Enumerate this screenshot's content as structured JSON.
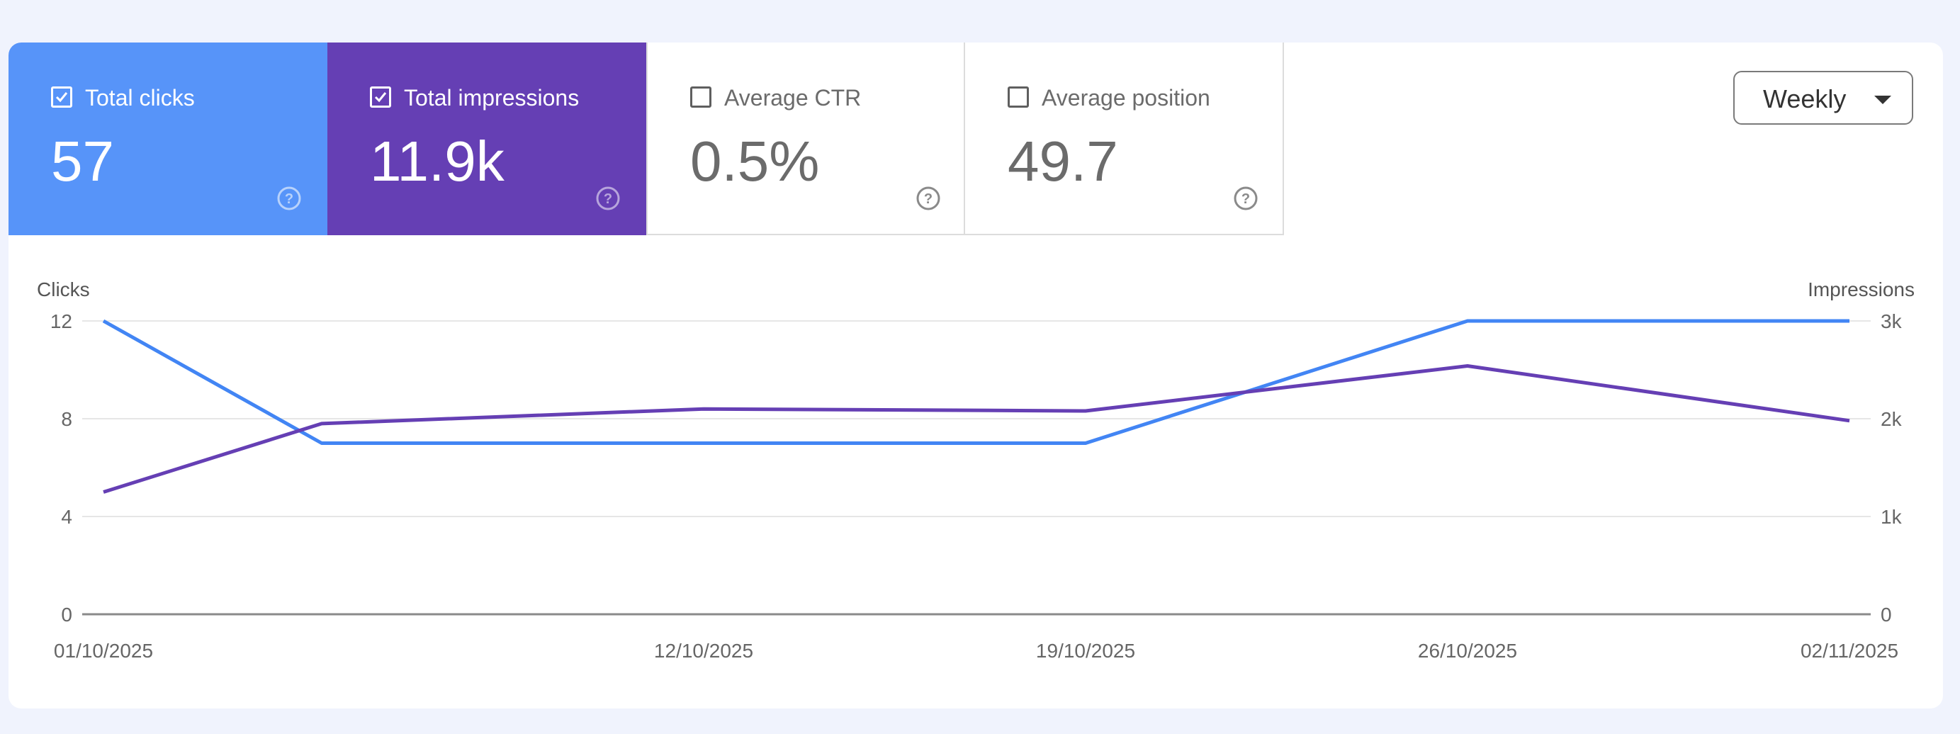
{
  "metrics": [
    {
      "label": "Total clicks",
      "value": "57",
      "checked": true,
      "color": "#5794f9"
    },
    {
      "label": "Total impressions",
      "value": "11.9k",
      "checked": true,
      "color": "#653fb4"
    },
    {
      "label": "Average CTR",
      "value": "0.5%",
      "checked": false
    },
    {
      "label": "Average position",
      "value": "49.7",
      "checked": false
    }
  ],
  "period_select": {
    "selected": "Weekly"
  },
  "chart_data": {
    "type": "line",
    "left_axis": {
      "label": "Clicks",
      "ticks": [
        "12",
        "8",
        "4",
        "0"
      ],
      "range": [
        0,
        12
      ]
    },
    "right_axis": {
      "label": "Impressions",
      "ticks": [
        "3k",
        "2k",
        "1k",
        "0"
      ],
      "range": [
        0,
        3000
      ]
    },
    "x_tick_labels": [
      "01/10/2025",
      "12/10/2025",
      "19/10/2025",
      "26/10/2025",
      "02/11/2025"
    ],
    "x": [
      "01/10/2025",
      "05/10/2025",
      "12/10/2025",
      "19/10/2025",
      "26/10/2025",
      "02/11/2025"
    ],
    "series": [
      {
        "name": "Total clicks",
        "axis": "left",
        "color": "#4285f4",
        "values": [
          12,
          7,
          7,
          7,
          12,
          12
        ]
      },
      {
        "name": "Total impressions",
        "axis": "right",
        "color": "#653fb4",
        "values": [
          1250,
          1950,
          2100,
          2080,
          2540,
          1980
        ]
      }
    ],
    "grid": true
  }
}
